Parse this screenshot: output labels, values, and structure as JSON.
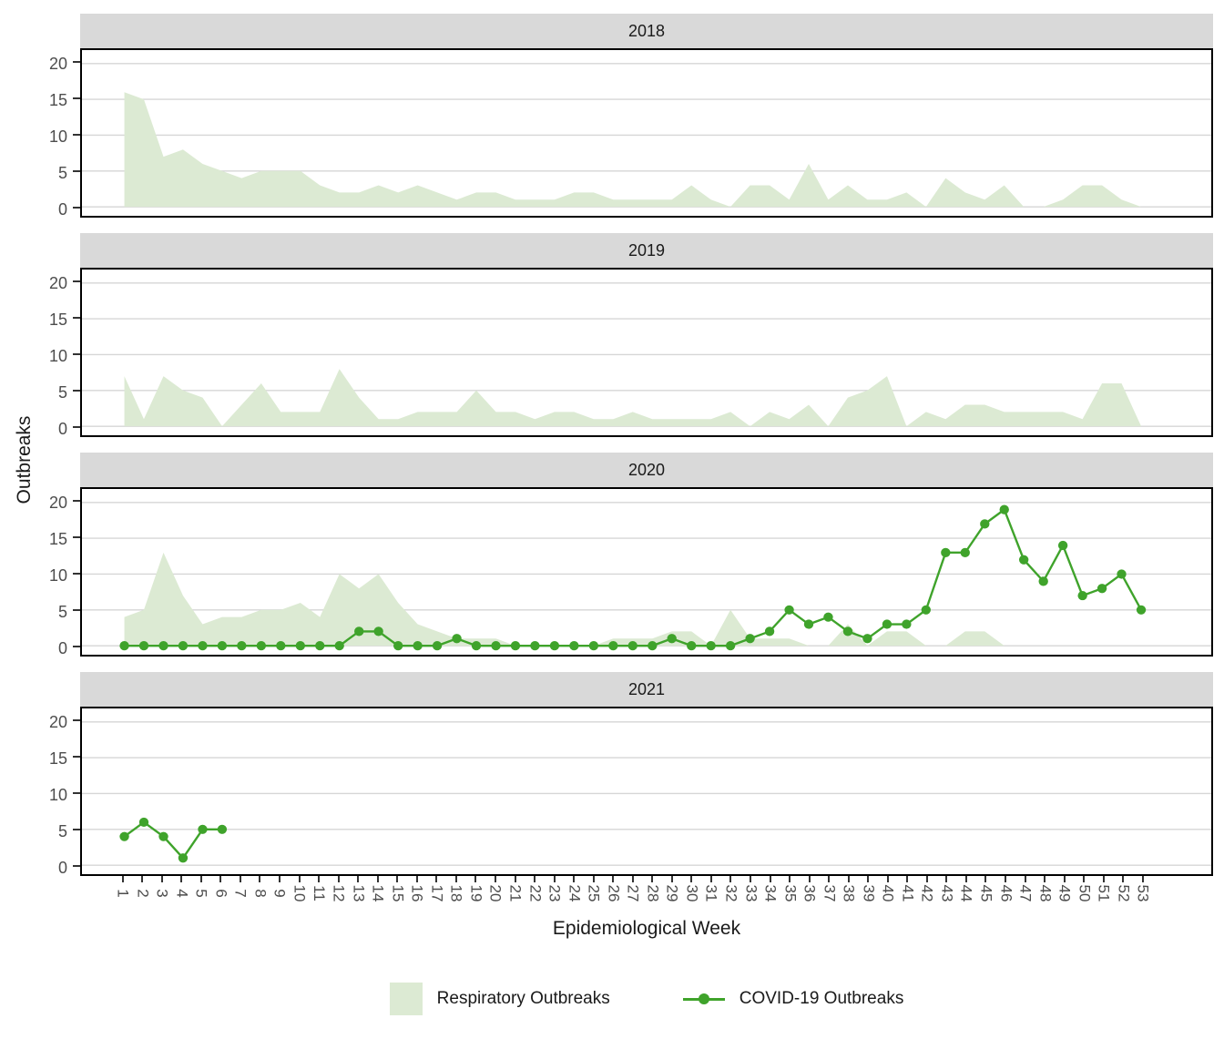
{
  "y_axis": {
    "title": "Outbreaks",
    "ticks": [
      0,
      5,
      10,
      15,
      20
    ]
  },
  "x_axis": {
    "title": "Epidemiological Week",
    "weeks": [
      1,
      2,
      3,
      4,
      5,
      6,
      7,
      8,
      9,
      10,
      11,
      12,
      13,
      14,
      15,
      16,
      17,
      18,
      19,
      20,
      21,
      22,
      23,
      24,
      25,
      26,
      27,
      28,
      29,
      30,
      31,
      32,
      33,
      34,
      35,
      36,
      37,
      38,
      39,
      40,
      41,
      42,
      43,
      44,
      45,
      46,
      47,
      48,
      49,
      50,
      51,
      52,
      53
    ]
  },
  "legend": {
    "items": [
      {
        "label": "Respiratory Outbreaks",
        "type": "area"
      },
      {
        "label": "COVID-19 Outbreaks",
        "type": "line-point"
      }
    ]
  },
  "colors": {
    "area": "#dcead3",
    "line": "#3fa32b",
    "gridline": "#d6d6d6",
    "strip_bg": "#d9d9d9",
    "panel_border": "#000000",
    "axis_text": "#4d4d4d"
  },
  "chart_data": {
    "type": "area",
    "subtype": "faceted area + line-with-points, facets stacked by year",
    "xlabel": "Epidemiological Week",
    "ylabel": "Outbreaks",
    "x_range": [
      1,
      53
    ],
    "ylim": [
      0,
      20
    ],
    "grid": "horizontal major gridlines at 0,5,10,15,20",
    "legend_position": "bottom",
    "facets": [
      {
        "year": "2018",
        "respiratory": [
          16,
          15,
          7,
          8,
          6,
          5,
          4,
          5,
          5,
          5,
          3,
          2,
          2,
          3,
          2,
          3,
          2,
          1,
          2,
          2,
          1,
          1,
          1,
          2,
          2,
          1,
          1,
          1,
          1,
          3,
          1,
          0,
          3,
          3,
          1,
          6,
          1,
          3,
          1,
          1,
          2,
          0,
          4,
          2,
          1,
          3,
          0,
          0,
          1,
          3,
          3,
          1,
          0
        ],
        "covid": null
      },
      {
        "year": "2019",
        "respiratory": [
          7,
          1,
          7,
          5,
          4,
          0,
          3,
          6,
          2,
          2,
          2,
          8,
          4,
          1,
          1,
          2,
          2,
          2,
          5,
          2,
          2,
          1,
          2,
          2,
          1,
          1,
          2,
          1,
          1,
          1,
          1,
          2,
          0,
          2,
          1,
          3,
          0,
          4,
          5,
          7,
          0,
          2,
          1,
          3,
          3,
          2,
          2,
          2,
          2,
          1,
          6,
          6,
          0
        ],
        "covid": null
      },
      {
        "year": "2020",
        "respiratory": [
          4,
          5,
          13,
          7,
          3,
          4,
          4,
          5,
          5,
          6,
          4,
          10,
          8,
          10,
          6,
          3,
          2,
          1,
          1,
          1,
          0,
          0,
          0,
          0,
          0,
          1,
          1,
          1,
          2,
          2,
          0,
          5,
          1,
          1,
          1,
          0,
          0,
          3,
          0,
          2,
          2,
          0,
          0,
          2,
          2,
          0,
          0,
          0,
          0,
          0,
          0,
          0,
          0
        ],
        "covid": [
          0,
          0,
          0,
          0,
          0,
          0,
          0,
          0,
          0,
          0,
          0,
          0,
          2,
          2,
          0,
          0,
          0,
          1,
          0,
          0,
          0,
          0,
          0,
          0,
          0,
          0,
          0,
          0,
          1,
          0,
          0,
          0,
          1,
          2,
          5,
          3,
          4,
          2,
          1,
          3,
          3,
          5,
          13,
          13,
          17,
          19,
          12,
          9,
          14,
          7,
          8,
          10,
          5
        ]
      },
      {
        "year": "2021",
        "respiratory": null,
        "covid": [
          4,
          6,
          4,
          1,
          5,
          5
        ]
      }
    ]
  }
}
